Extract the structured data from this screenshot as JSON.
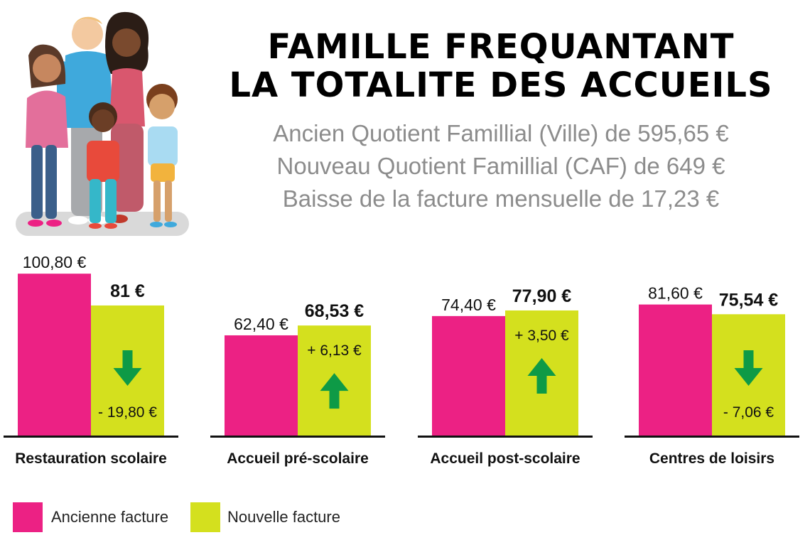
{
  "title": {
    "line1": "FAMILLE FREQUANTANT",
    "line2": "LA TOTALITE DES ACCUEILS"
  },
  "subtitle": {
    "line1": "Ancien Quotient Famillial (Ville) de 595,65 €",
    "line2": "Nouveau Quotient Famillial (CAF) de 649 €",
    "line3": "Baisse de la facture mensuelle de 17,23 €"
  },
  "colors": {
    "ancienne": "#ec2184",
    "nouvelle": "#d4e01e",
    "arrow": "#0e9a46",
    "baseline": "#111111",
    "subtitle": "#8c8c8c"
  },
  "chart_data": {
    "type": "bar",
    "title": "Famille fréquentant la totalité des accueils",
    "categories": [
      "Restauration scolaire",
      "Accueil pré-scolaire",
      "Accueil post-scolaire",
      "Centres de loisirs"
    ],
    "series": [
      {
        "name": "Ancienne facture",
        "values": [
          100.8,
          62.4,
          74.4,
          81.6
        ],
        "labels": [
          "100,80 €",
          "62,40 €",
          "74,40 €",
          "81,60 €"
        ]
      },
      {
        "name": "Nouvelle facture",
        "values": [
          81,
          68.53,
          77.9,
          75.54
        ],
        "labels": [
          "81 €",
          "68,53 €",
          "77,90 €",
          "75,54 €"
        ]
      }
    ],
    "differences": {
      "values": [
        -19.8,
        6.13,
        3.5,
        -7.06
      ],
      "labels": [
        "- 19,80 €",
        "+ 6,13 €",
        "+ 3,50 €",
        "- 7,06 €"
      ],
      "direction": [
        "down",
        "up",
        "up",
        "down"
      ]
    },
    "ylim": [
      0,
      105
    ],
    "grid": false,
    "legend": "bottom-left"
  },
  "legend": {
    "ancienne": "Ancienne facture",
    "nouvelle": "Nouvelle facture"
  }
}
